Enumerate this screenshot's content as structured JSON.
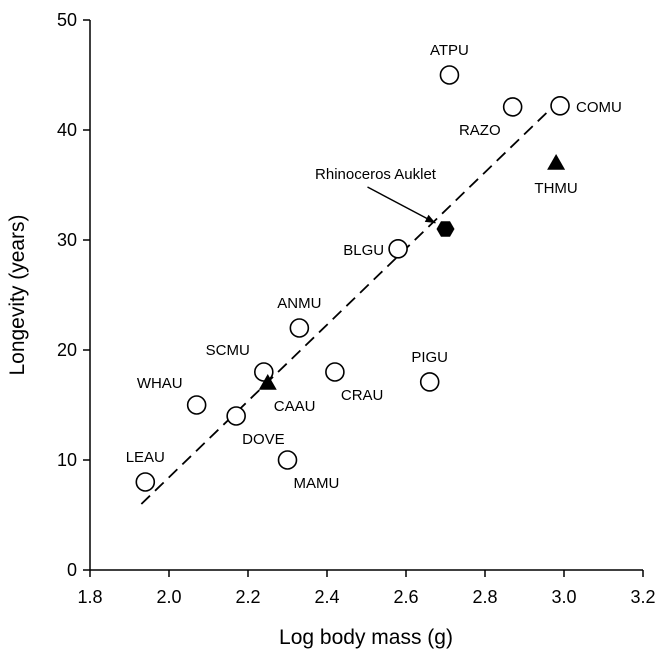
{
  "chart_data": {
    "type": "scatter",
    "xlabel": "Log body mass (g)",
    "ylabel": "Longevity (years)",
    "xlim": [
      1.8,
      3.2
    ],
    "ylim": [
      0,
      50
    ],
    "xticks": [
      "1.8",
      "2.0",
      "2.2",
      "2.4",
      "2.6",
      "2.8",
      "3.0",
      "3.2"
    ],
    "yticks": [
      "0",
      "10",
      "20",
      "30",
      "40",
      "50"
    ],
    "grid": false,
    "colors": {
      "axis": "#000000",
      "marker_edge": "#000000",
      "marker_fill_open": "#ffffff",
      "marker_fill_solid": "#000000",
      "text": "#000000"
    },
    "points": [
      {
        "label": "LEAU",
        "x": 1.94,
        "y": 8.0,
        "marker": "open-circle",
        "label_pos": "above"
      },
      {
        "label": "WHAU",
        "x": 2.07,
        "y": 15.0,
        "marker": "open-circle",
        "label_pos": "above-left"
      },
      {
        "label": "DOVE",
        "x": 2.17,
        "y": 14.0,
        "marker": "open-circle",
        "label_pos": "below-right"
      },
      {
        "label": "SCMU",
        "x": 2.24,
        "y": 18.0,
        "marker": "open-circle",
        "label_pos": "above-left"
      },
      {
        "label": "ANMU",
        "x": 2.33,
        "y": 22.0,
        "marker": "open-circle",
        "label_pos": "above"
      },
      {
        "label": "MAMU",
        "x": 2.3,
        "y": 10.0,
        "marker": "open-circle",
        "label_pos": "below-right"
      },
      {
        "label": "CRAU",
        "x": 2.42,
        "y": 18.0,
        "marker": "open-circle",
        "label_pos": "below-right"
      },
      {
        "label": "BLGU",
        "x": 2.58,
        "y": 29.2,
        "marker": "open-circle",
        "label_pos": "left"
      },
      {
        "label": "PIGU",
        "x": 2.66,
        "y": 17.1,
        "marker": "open-circle",
        "label_pos": "above"
      },
      {
        "label": "ATPU",
        "x": 2.71,
        "y": 45.0,
        "marker": "open-circle",
        "label_pos": "above"
      },
      {
        "label": "RAZO",
        "x": 2.87,
        "y": 42.1,
        "marker": "open-circle",
        "label_pos": "below-left"
      },
      {
        "label": "COMU",
        "x": 2.99,
        "y": 42.2,
        "marker": "open-circle",
        "label_pos": "right"
      },
      {
        "label": "CAAU",
        "x": 2.25,
        "y": 17.0,
        "marker": "filled-triangle",
        "label_pos": "below-right"
      },
      {
        "label": "THMU",
        "x": 2.98,
        "y": 37.0,
        "marker": "filled-triangle",
        "label_pos": "below"
      },
      {
        "label": "Rhinoceros Auklet",
        "x": 2.7,
        "y": 31.0,
        "marker": "filled-hexagon",
        "label_pos": "callout"
      }
    ],
    "trendline": {
      "style": "dashed",
      "x_start": 1.93,
      "y_start": 6.0,
      "x_end": 2.98,
      "y_end": 42.4
    }
  }
}
